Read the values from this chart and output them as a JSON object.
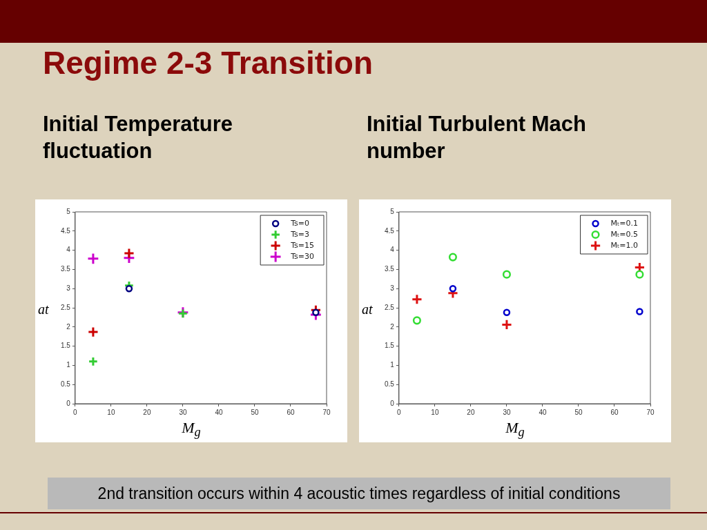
{
  "chart_data": [
    {
      "type": "scatter",
      "title": "Initial Temperature fluctuation",
      "xlabel": "M$_{g}$",
      "ylabel": "at",
      "x": [
        5,
        15,
        30,
        67
      ],
      "xlim": [
        0,
        70
      ],
      "xticks": [
        0,
        10,
        20,
        30,
        40,
        50,
        60,
        70
      ],
      "ylim": [
        0,
        5
      ],
      "yticks": [
        0,
        0.5,
        1,
        1.5,
        2,
        2.5,
        3,
        3.5,
        4,
        4.5,
        5
      ],
      "grid": false,
      "legend": "top right",
      "annotations": [
        "Regime 2-3 Transition",
        "2nd  transition occurs within 4 acoustic times regardless of initial conditions"
      ],
      "series": [
        {
          "name": "Ts=0",
          "color": "#000080",
          "marker": "circle",
          "values": [
            null,
            3.0,
            null,
            2.38
          ]
        },
        {
          "name": "Ts=3",
          "color": "#33cc33",
          "marker": "cross",
          "values": [
            1.1,
            3.08,
            2.35,
            null
          ]
        },
        {
          "name": "Ts=15",
          "color": "#cc0000",
          "marker": "cross",
          "values": [
            1.87,
            3.92,
            null,
            2.44
          ]
        },
        {
          "name": "Ts=30",
          "color": "#cc00cc",
          "marker": "cross",
          "values": [
            3.78,
            3.8,
            2.38,
            2.32
          ]
        }
      ]
    },
    {
      "type": "scatter",
      "title": "Initial Turbulent Mach number",
      "xlabel": "M$_{g}$",
      "ylabel": "at",
      "x": [
        5,
        15,
        30,
        67
      ],
      "xlim": [
        0,
        70
      ],
      "xticks": [
        0,
        10,
        20,
        30,
        40,
        50,
        60,
        70
      ],
      "ylim": [
        0,
        5
      ],
      "yticks": [
        0,
        0.5,
        1,
        1.5,
        2,
        2.5,
        3,
        3.5,
        4,
        4.5,
        5
      ],
      "grid": false,
      "legend": "top right",
      "series": [
        {
          "name": "Mₜ=0.1",
          "color": "#0000cc",
          "marker": "circle",
          "values": [
            null,
            3.0,
            2.38,
            2.4
          ]
        },
        {
          "name": "Mₜ=0.5",
          "color": "#33dd33",
          "marker": "circle",
          "values": [
            2.17,
            3.82,
            3.37,
            3.37
          ]
        },
        {
          "name": "Mₜ=1.0",
          "color": "#dd1111",
          "marker": "cross",
          "values": [
            2.72,
            2.88,
            2.06,
            3.55
          ]
        }
      ]
    }
  ]
}
